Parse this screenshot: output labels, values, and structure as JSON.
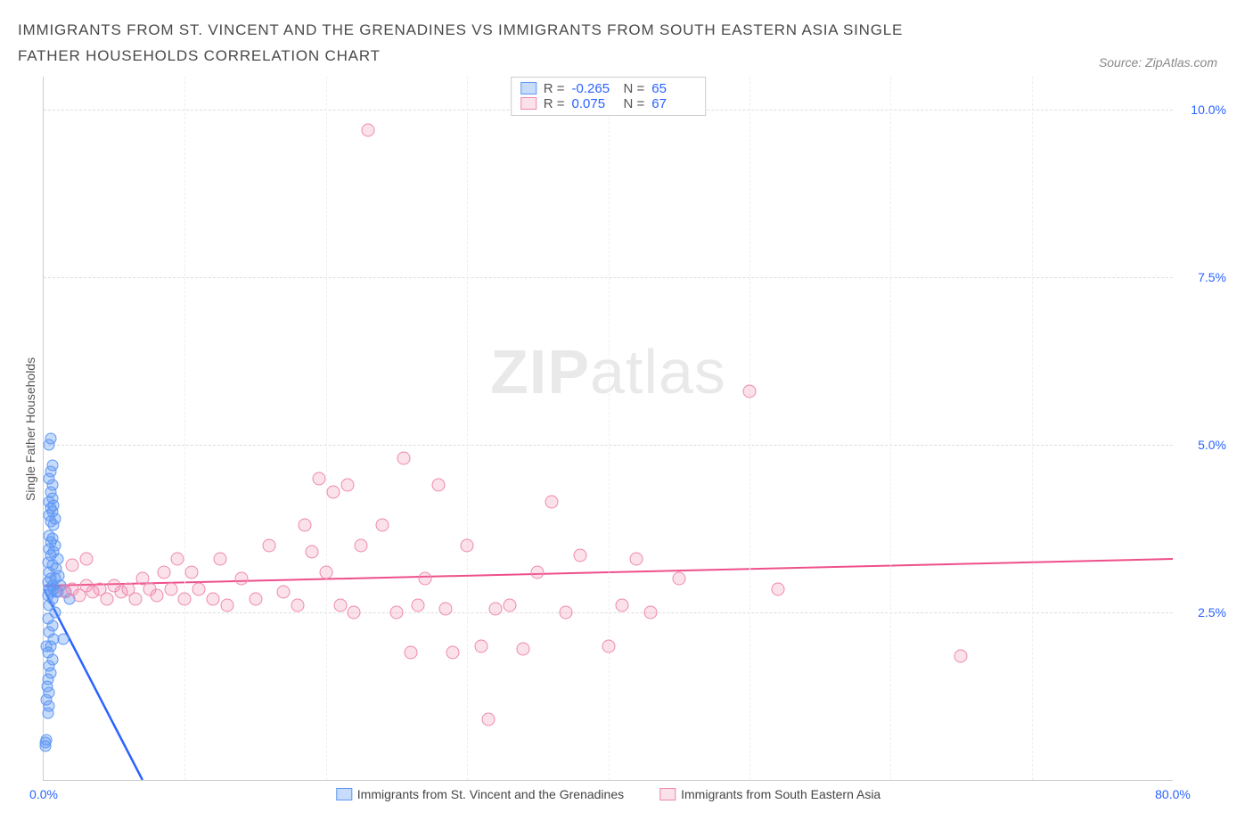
{
  "chart": {
    "type": "scatter",
    "title": "IMMIGRANTS FROM ST. VINCENT AND THE GRENADINES VS IMMIGRANTS FROM SOUTH EASTERN ASIA SINGLE FATHER HOUSEHOLDS CORRELATION CHART",
    "source_label": "Source: ZipAtlas.com",
    "y_label": "Single Father Households",
    "watermark_bold": "ZIP",
    "watermark_light": "atlas",
    "xlim": [
      0,
      80
    ],
    "ylim": [
      0,
      10.5
    ],
    "x_ticks": [
      {
        "v": 0,
        "l": "0.0%"
      },
      {
        "v": 80,
        "l": "80.0%"
      }
    ],
    "y_ticks": [
      {
        "v": 2.5,
        "l": "2.5%"
      },
      {
        "v": 5.0,
        "l": "5.0%"
      },
      {
        "v": 7.5,
        "l": "7.5%"
      },
      {
        "v": 10.0,
        "l": "10.0%"
      }
    ],
    "x_grid_at": [
      10,
      20,
      30,
      40,
      50,
      60,
      70
    ],
    "background_color": "#ffffff",
    "grid_color": "#dddddd",
    "stats_legend": [
      {
        "swatch_fill": "rgba(95,151,244,0.35)",
        "swatch_border": "#5f97f4",
        "r": "-0.265",
        "n": "65"
      },
      {
        "swatch_fill": "rgba(238,137,173,0.25)",
        "swatch_border": "#ee89ad",
        "r": "0.075",
        "n": "67"
      }
    ],
    "series_legend": [
      {
        "swatch_fill": "rgba(95,151,244,0.35)",
        "swatch_border": "#5f97f4",
        "label": "Immigrants from St. Vincent and the Grenadines"
      },
      {
        "swatch_fill": "rgba(238,137,173,0.25)",
        "swatch_border": "#ee89ad",
        "label": "Immigrants from South Eastern Asia"
      }
    ],
    "series": [
      {
        "name": "blue",
        "color": "#5f97f4",
        "fill": "rgba(95,151,244,0.35)",
        "trend": {
          "x1": 0,
          "y1": 2.85,
          "x2": 7,
          "y2": 0,
          "color": "#2962ff",
          "width": 2.5,
          "dash": false
        },
        "trend_ext": {
          "x1": 7,
          "y1": 0,
          "x2": 9,
          "y2": -0.8,
          "color": "#5f97f4",
          "width": 1,
          "dash": true
        },
        "points": [
          [
            0.1,
            0.5
          ],
          [
            0.15,
            0.55
          ],
          [
            0.2,
            0.6
          ],
          [
            0.3,
            1.0
          ],
          [
            0.35,
            1.1
          ],
          [
            0.2,
            1.2
          ],
          [
            0.4,
            1.3
          ],
          [
            0.25,
            1.4
          ],
          [
            0.3,
            1.5
          ],
          [
            0.5,
            1.6
          ],
          [
            0.4,
            1.7
          ],
          [
            0.6,
            1.8
          ],
          [
            0.3,
            1.9
          ],
          [
            0.5,
            2.0
          ],
          [
            0.2,
            2.0
          ],
          [
            0.7,
            2.1
          ],
          [
            0.4,
            2.2
          ],
          [
            0.6,
            2.3
          ],
          [
            0.3,
            2.4
          ],
          [
            0.8,
            2.5
          ],
          [
            0.4,
            2.6
          ],
          [
            0.6,
            2.7
          ],
          [
            0.3,
            2.75
          ],
          [
            0.9,
            2.8
          ],
          [
            0.5,
            2.8
          ],
          [
            1.0,
            2.8
          ],
          [
            0.7,
            2.85
          ],
          [
            0.4,
            2.85
          ],
          [
            1.2,
            2.9
          ],
          [
            0.6,
            2.9
          ],
          [
            0.3,
            2.95
          ],
          [
            0.8,
            3.0
          ],
          [
            0.5,
            3.0
          ],
          [
            1.1,
            3.05
          ],
          [
            0.4,
            3.1
          ],
          [
            0.9,
            3.15
          ],
          [
            0.6,
            3.2
          ],
          [
            0.3,
            3.25
          ],
          [
            1.0,
            3.3
          ],
          [
            0.5,
            3.35
          ],
          [
            0.7,
            3.4
          ],
          [
            0.4,
            3.45
          ],
          [
            0.8,
            3.5
          ],
          [
            0.5,
            3.55
          ],
          [
            0.6,
            3.6
          ],
          [
            0.4,
            3.65
          ],
          [
            0.7,
            3.8
          ],
          [
            0.5,
            3.85
          ],
          [
            0.8,
            3.9
          ],
          [
            0.4,
            3.95
          ],
          [
            0.6,
            4.0
          ],
          [
            0.5,
            4.05
          ],
          [
            0.7,
            4.1
          ],
          [
            0.4,
            4.15
          ],
          [
            0.6,
            4.2
          ],
          [
            0.5,
            4.3
          ],
          [
            0.6,
            4.4
          ],
          [
            0.4,
            4.5
          ],
          [
            0.5,
            4.6
          ],
          [
            0.6,
            4.7
          ],
          [
            0.4,
            5.0
          ],
          [
            0.5,
            5.1
          ],
          [
            1.4,
            2.1
          ],
          [
            1.6,
            2.8
          ],
          [
            1.8,
            2.7
          ]
        ]
      },
      {
        "name": "pink",
        "color": "#ee89ad",
        "fill": "rgba(238,137,173,0.25)",
        "trend": {
          "x1": 0,
          "y1": 2.9,
          "x2": 80,
          "y2": 3.3,
          "color": "#ee4f8a",
          "width": 2,
          "dash": false
        },
        "points": [
          [
            1.5,
            2.8
          ],
          [
            2,
            2.85
          ],
          [
            2.5,
            2.75
          ],
          [
            3,
            2.9
          ],
          [
            3.5,
            2.8
          ],
          [
            4,
            2.85
          ],
          [
            4.5,
            2.7
          ],
          [
            5,
            2.9
          ],
          [
            5.5,
            2.8
          ],
          [
            6,
            2.85
          ],
          [
            6.5,
            2.7
          ],
          [
            7,
            3.0
          ],
          [
            7.5,
            2.85
          ],
          [
            8,
            2.75
          ],
          [
            8.5,
            3.1
          ],
          [
            9,
            2.85
          ],
          [
            9.5,
            3.3
          ],
          [
            10,
            2.7
          ],
          [
            10.5,
            3.1
          ],
          [
            11,
            2.85
          ],
          [
            12,
            2.7
          ],
          [
            12.5,
            3.3
          ],
          [
            13,
            2.6
          ],
          [
            14,
            3.0
          ],
          [
            15,
            2.7
          ],
          [
            16,
            3.5
          ],
          [
            17,
            2.8
          ],
          [
            18,
            2.6
          ],
          [
            18.5,
            3.8
          ],
          [
            19,
            3.4
          ],
          [
            19.5,
            4.5
          ],
          [
            20,
            3.1
          ],
          [
            20.5,
            4.3
          ],
          [
            21,
            2.6
          ],
          [
            21.5,
            4.4
          ],
          [
            22,
            2.5
          ],
          [
            22.5,
            3.5
          ],
          [
            23,
            9.7
          ],
          [
            24,
            3.8
          ],
          [
            25,
            2.5
          ],
          [
            25.5,
            4.8
          ],
          [
            26,
            1.9
          ],
          [
            26.5,
            2.6
          ],
          [
            27,
            3.0
          ],
          [
            28,
            4.4
          ],
          [
            28.5,
            2.55
          ],
          [
            29,
            1.9
          ],
          [
            30,
            3.5
          ],
          [
            31,
            2.0
          ],
          [
            31.5,
            0.9
          ],
          [
            32,
            2.55
          ],
          [
            33,
            2.6
          ],
          [
            34,
            1.95
          ],
          [
            35,
            3.1
          ],
          [
            36,
            4.15
          ],
          [
            37,
            2.5
          ],
          [
            38,
            3.35
          ],
          [
            40,
            2.0
          ],
          [
            41,
            2.6
          ],
          [
            42,
            3.3
          ],
          [
            43,
            2.5
          ],
          [
            45,
            3.0
          ],
          [
            50,
            5.8
          ],
          [
            52,
            2.85
          ],
          [
            65,
            1.85
          ],
          [
            2,
            3.2
          ],
          [
            3,
            3.3
          ]
        ]
      }
    ]
  }
}
